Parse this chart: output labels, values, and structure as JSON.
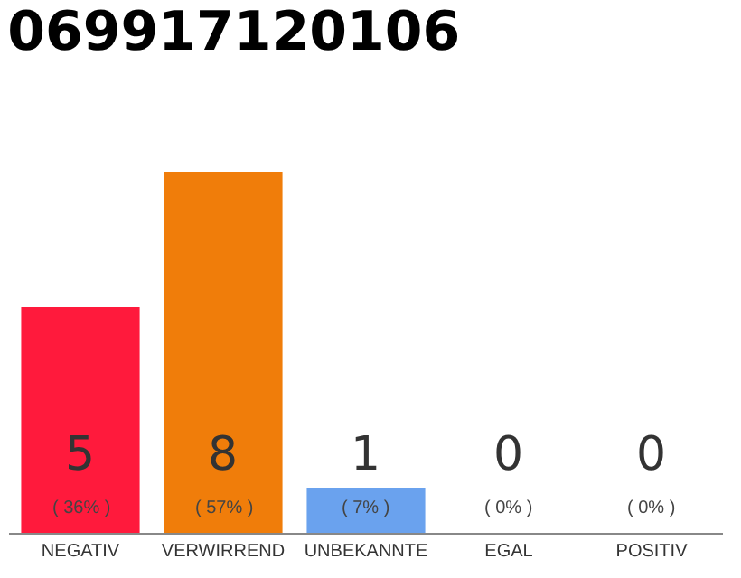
{
  "chart_data": {
    "type": "bar",
    "title": "069917120106",
    "data_labels": true,
    "tick_labels": "x",
    "categories": [
      "NEGATIV",
      "VERWIRREND",
      "UNBEKANNTE",
      "EGAL",
      "POSITIV"
    ],
    "values": [
      5,
      8,
      1,
      0,
      0
    ],
    "annotations": [
      "( 36% )",
      "( 57% )",
      "( 7% )",
      "( 0% )",
      "( 0% )"
    ],
    "colors": [
      "#ff1a3c",
      "#f07d0a",
      "#6aa2ee",
      "#d9d9d9",
      "#d9d9d9"
    ]
  }
}
